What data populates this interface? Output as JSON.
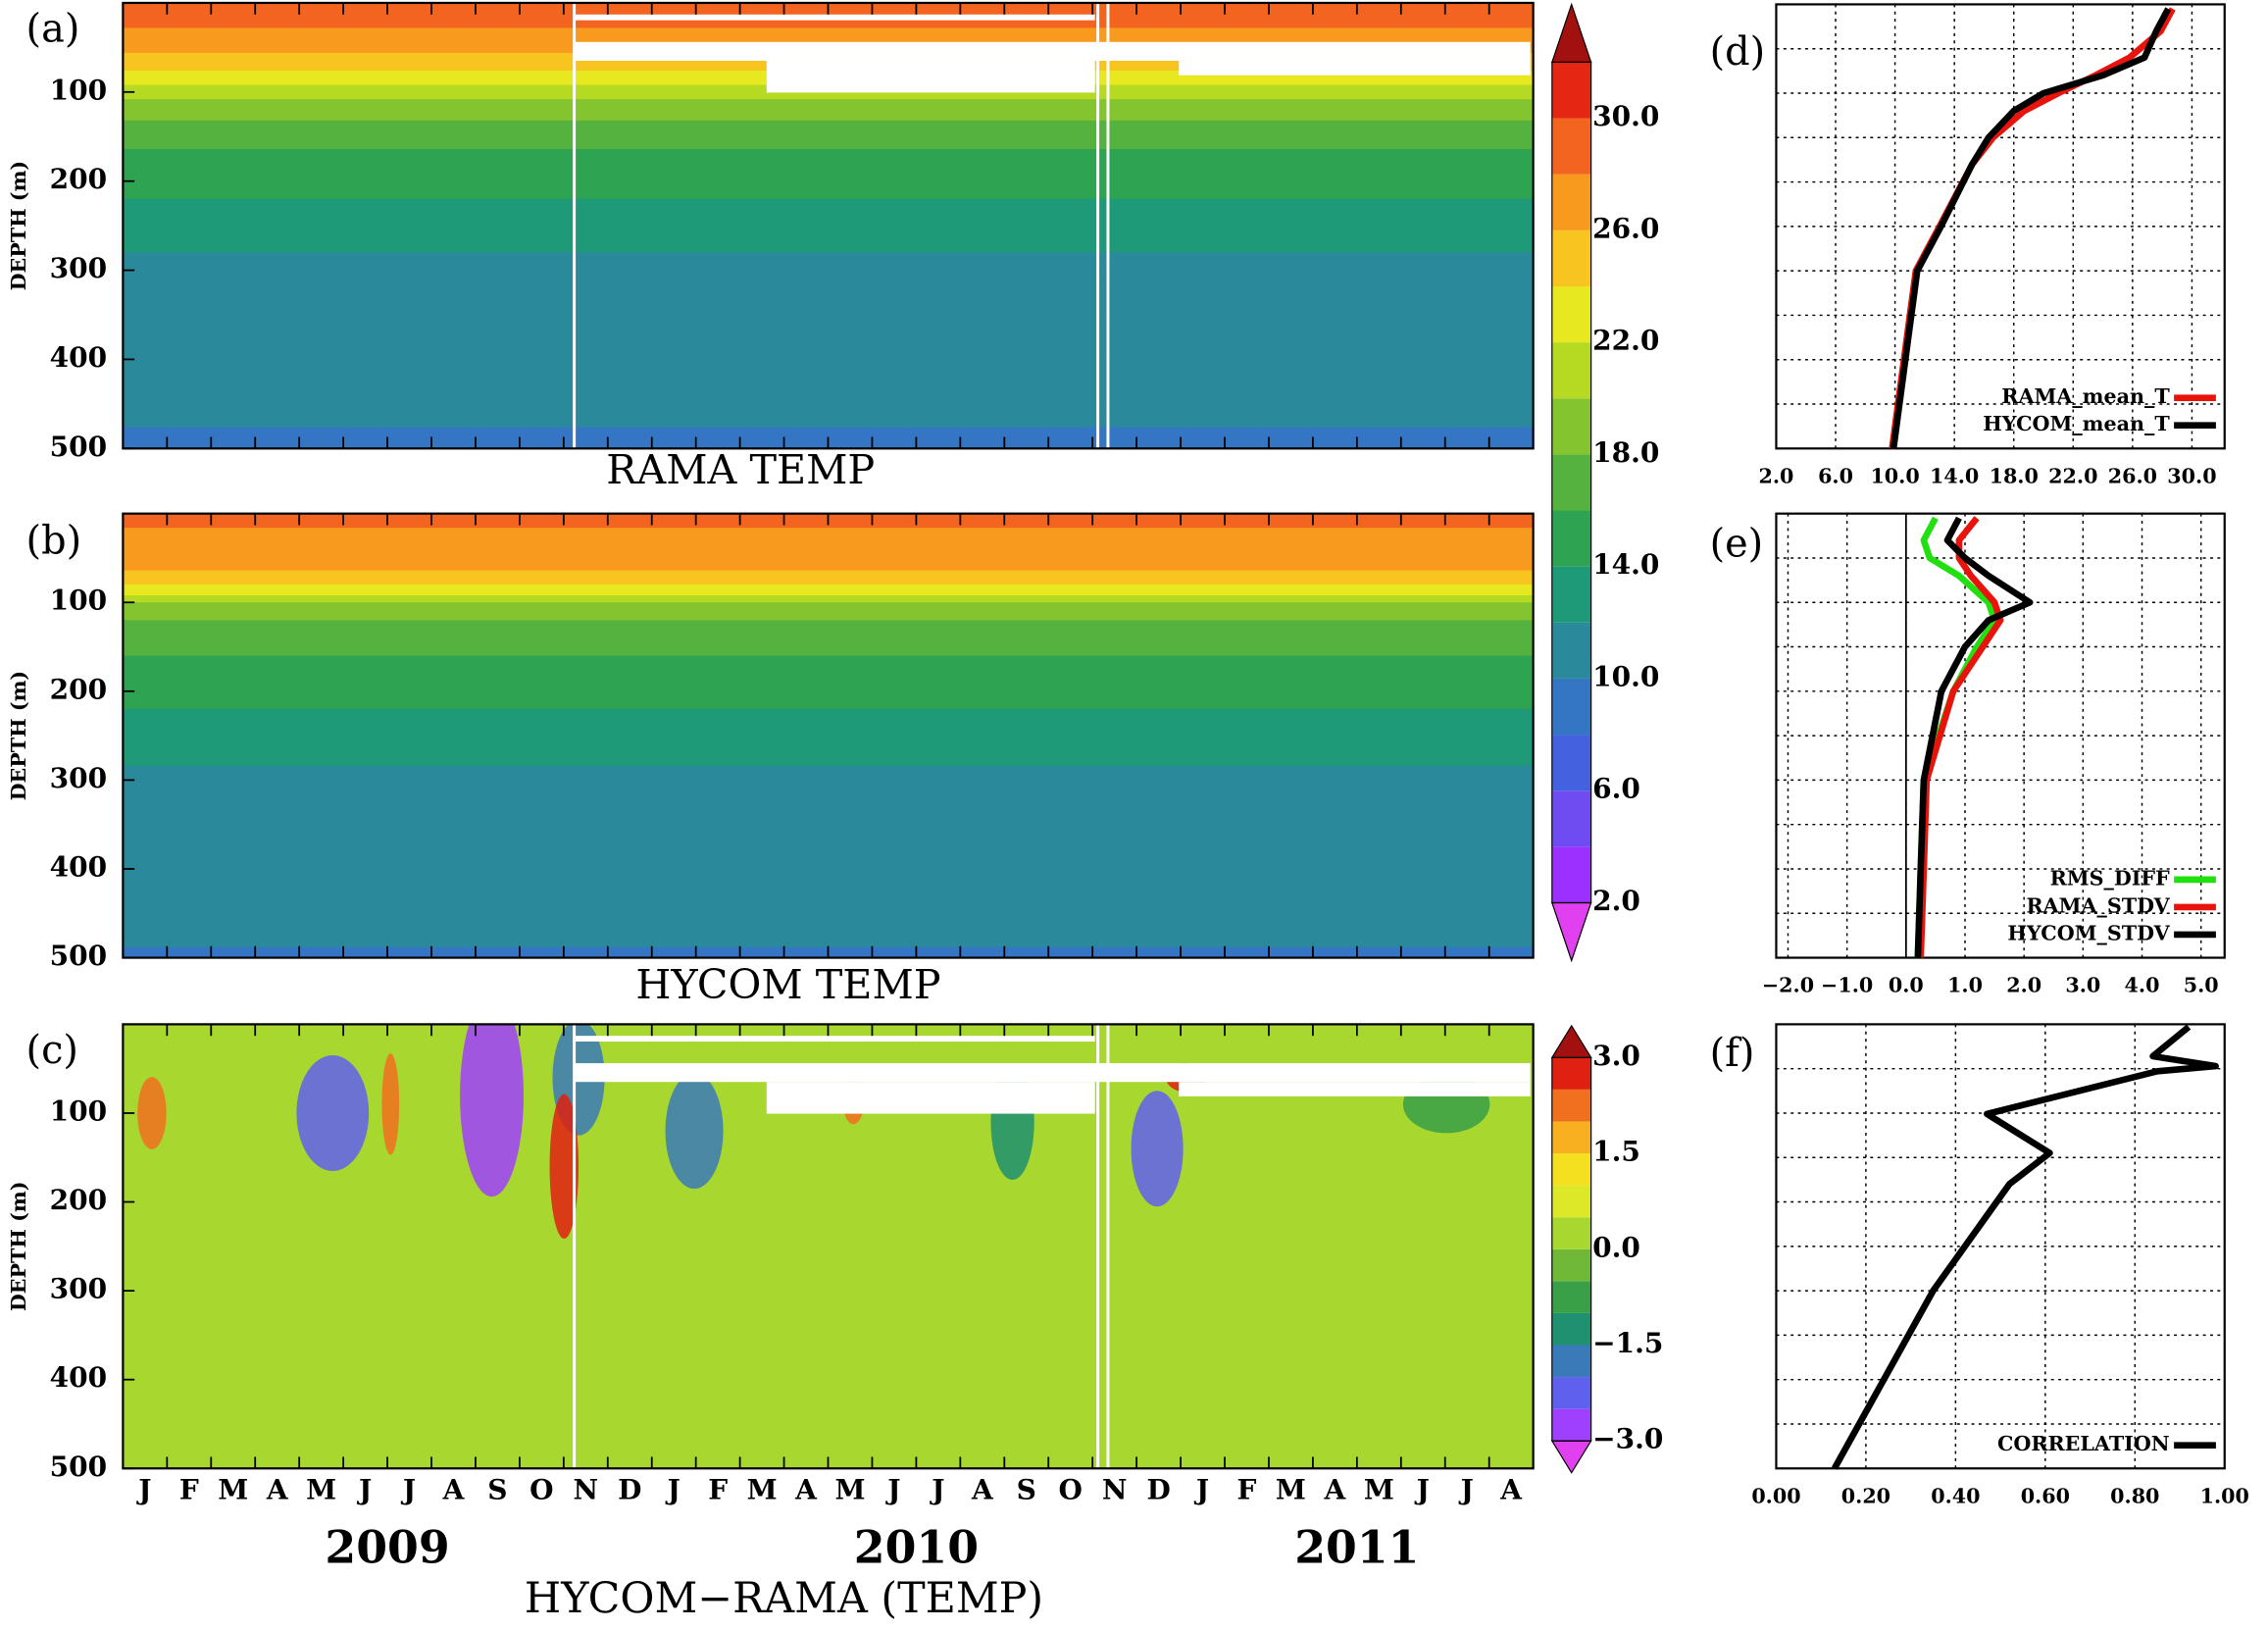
{
  "chart_data": [
    {
      "type": "contour",
      "label": "(a)",
      "title": "RAMA TEMP",
      "ylabel": "DEPTH (m)",
      "ylim": [
        0,
        500
      ],
      "yticks": [
        100,
        200,
        300,
        400,
        500
      ],
      "invert_y": true,
      "colorbar": {
        "levels": [
          2,
          4,
          6,
          8,
          10,
          12,
          14,
          16,
          18,
          20,
          22,
          24,
          26,
          28,
          30,
          32
        ],
        "colors": [
          "#9b30ff",
          "#6f4cf2",
          "#4462e0",
          "#3476c4",
          "#2a8a9c",
          "#1f9a78",
          "#2ea452",
          "#55b23e",
          "#84c42e",
          "#b6da22",
          "#e8e820",
          "#f8c420",
          "#f89a1e",
          "#f26420",
          "#e42612"
        ],
        "under_color": "#e040f0",
        "over_color": "#a31010",
        "ticks": [
          {
            "value": 2,
            "label": "2.0"
          },
          {
            "value": 6,
            "label": "6.0"
          },
          {
            "value": 10,
            "label": "10.0"
          },
          {
            "value": 14,
            "label": "14.0"
          },
          {
            "value": 18,
            "label": "18.0"
          },
          {
            "value": 22,
            "label": "22.0"
          },
          {
            "value": 26,
            "label": "26.0"
          },
          {
            "value": 30,
            "label": "30.0"
          }
        ]
      }
    },
    {
      "type": "contour",
      "label": "(b)",
      "title": "HYCOM TEMP",
      "ylabel": "DEPTH (m)",
      "ylim": [
        0,
        500
      ],
      "yticks": [
        100,
        200,
        300,
        400,
        500
      ],
      "invert_y": true
    },
    {
      "type": "contour",
      "label": "(c)",
      "xlabel": "HYCOM−RAMA (TEMP)",
      "ylabel": "DEPTH (m)",
      "ylim": [
        0,
        500
      ],
      "yticks": [
        100,
        200,
        300,
        400,
        500
      ],
      "invert_y": true,
      "categories": [
        "J",
        "F",
        "M",
        "A",
        "M",
        "J",
        "J",
        "A",
        "S",
        "O",
        "N",
        "D",
        "J",
        "F",
        "M",
        "A",
        "M",
        "J",
        "J",
        "A",
        "S",
        "O",
        "N",
        "D",
        "J",
        "F",
        "M",
        "A",
        "M",
        "J",
        "J",
        "A"
      ],
      "years": [
        "2009",
        "2010",
        "2011"
      ],
      "colorbar": {
        "levels": [
          -3,
          -2.5,
          -2,
          -1.5,
          -1,
          -0.5,
          0,
          0.5,
          1,
          1.5,
          2,
          2.5,
          3
        ],
        "colors": [
          "#a040ff",
          "#6060ee",
          "#3a7ab8",
          "#1f9070",
          "#3aa048",
          "#70b838",
          "#a8d830",
          "#dde828",
          "#f5e020",
          "#f8b020",
          "#f07020",
          "#e02010"
        ],
        "under_color": "#e040f0",
        "over_color": "#a31010",
        "ticks": [
          {
            "value": 3,
            "label": "3.0"
          },
          {
            "value": 1.5,
            "label": "1.5"
          },
          {
            "value": 0,
            "label": "0.0"
          },
          {
            "value": -1.5,
            "label": "−1.5"
          },
          {
            "value": -3,
            "label": "−3.0"
          }
        ]
      }
    },
    {
      "type": "profile",
      "label": "(d)",
      "ylim": [
        0,
        500
      ],
      "invert_y": true,
      "ygrid": [
        50,
        100,
        150,
        200,
        250,
        300,
        350,
        400,
        450
      ],
      "xlim": [
        2,
        32.2
      ],
      "xticks": [
        {
          "value": 2,
          "label": "2.0"
        },
        {
          "value": 6,
          "label": "6.0"
        },
        {
          "value": 10,
          "label": "10.0"
        },
        {
          "value": 14,
          "label": "14.0"
        },
        {
          "value": 18,
          "label": "18.0"
        },
        {
          "value": 22,
          "label": "22.0"
        },
        {
          "value": 26,
          "label": "26.0"
        },
        {
          "value": 30,
          "label": "30.0"
        }
      ],
      "y": [
        5,
        30,
        60,
        80,
        100,
        120,
        150,
        180,
        250,
        300,
        400,
        500
      ],
      "legend": "lower right",
      "series": [
        {
          "name": "RAMA_mean_T",
          "color": "#e8140c",
          "values": [
            28.7,
            27.9,
            25.8,
            23.5,
            21.0,
            18.7,
            16.6,
            15.2,
            13.0,
            11.4,
            10.6,
            9.8
          ]
        },
        {
          "name": "HYCOM_mean_T",
          "color": "#000000",
          "values": [
            28.4,
            27.6,
            26.8,
            24.0,
            20.0,
            18.0,
            16.3,
            15.2,
            13.1,
            11.5,
            10.7,
            9.9
          ]
        }
      ]
    },
    {
      "type": "profile",
      "label": "(e)",
      "ylim": [
        0,
        500
      ],
      "invert_y": true,
      "ygrid": [
        50,
        100,
        150,
        200,
        250,
        300,
        350,
        400,
        450
      ],
      "xlim": [
        -2.2,
        5.4
      ],
      "xticks": [
        {
          "value": -2,
          "label": "−2.0"
        },
        {
          "value": -1,
          "label": "−1.0"
        },
        {
          "value": 0,
          "label": "0.0"
        },
        {
          "value": 1,
          "label": "1.0"
        },
        {
          "value": 2,
          "label": "2.0"
        },
        {
          "value": 3,
          "label": "3.0"
        },
        {
          "value": 4,
          "label": "4.0"
        },
        {
          "value": 5,
          "label": "5.0"
        }
      ],
      "y": [
        5,
        30,
        50,
        70,
        100,
        120,
        150,
        200,
        300,
        400,
        500
      ],
      "legend": "lower right",
      "series": [
        {
          "name": "RMS_DIFF",
          "color": "#22e010",
          "values": [
            0.5,
            0.3,
            0.4,
            0.9,
            1.4,
            1.5,
            1.2,
            0.8,
            0.3,
            0.25,
            0.2
          ]
        },
        {
          "name": "RAMA_STDV",
          "color": "#e8140c",
          "values": [
            1.2,
            0.9,
            0.9,
            1.1,
            1.5,
            1.6,
            1.3,
            0.8,
            0.35,
            0.3,
            0.25
          ]
        },
        {
          "name": "HYCOM_STDV",
          "color": "#000000",
          "values": [
            0.9,
            0.7,
            1.0,
            1.4,
            2.1,
            1.4,
            1.0,
            0.6,
            0.3,
            0.25,
            0.2
          ]
        }
      ]
    },
    {
      "type": "profile",
      "label": "(f)",
      "ylim": [
        0,
        500
      ],
      "invert_y": true,
      "ygrid": [
        50,
        100,
        150,
        200,
        250,
        300,
        350,
        400,
        450
      ],
      "xlim": [
        0,
        1
      ],
      "xticks": [
        {
          "value": 0,
          "label": "0.00"
        },
        {
          "value": 0.2,
          "label": "0.20"
        },
        {
          "value": 0.4,
          "label": "0.40"
        },
        {
          "value": 0.6,
          "label": "0.60"
        },
        {
          "value": 0.8,
          "label": "0.80"
        },
        {
          "value": 1,
          "label": "1.00"
        }
      ],
      "y": [
        3,
        36,
        47,
        53,
        101,
        145,
        180,
        300,
        400,
        500
      ],
      "legend": "lower right",
      "series": [
        {
          "name": "CORRELATION",
          "color": "#000000",
          "values": [
            0.92,
            0.84,
            0.98,
            0.85,
            0.47,
            0.61,
            0.52,
            0.35,
            0.24,
            0.13
          ]
        }
      ]
    }
  ]
}
